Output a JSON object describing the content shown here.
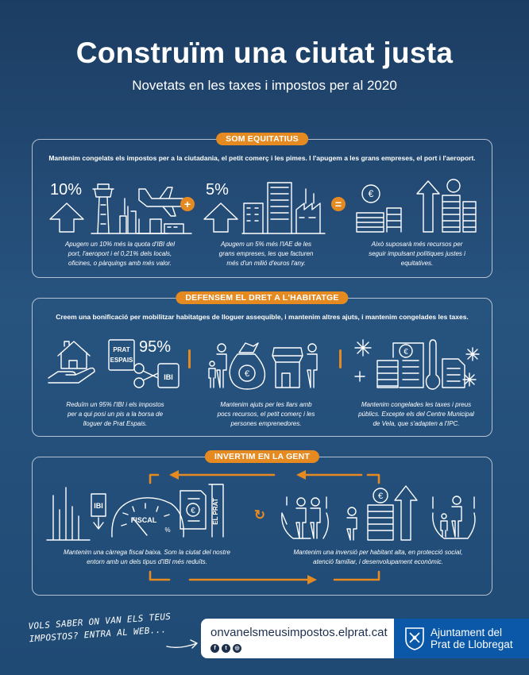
{
  "header": {
    "title": "Construïm una ciutat justa",
    "subtitle": "Novetats en les taxes i impostos per al 2020"
  },
  "colors": {
    "background": "#1f4a74",
    "accent": "#e58a21",
    "logo_blue": "#0a58a7",
    "url_text": "#1d2f4d"
  },
  "section1": {
    "badge": "SOM EQUITATIUS",
    "intro": "Mantenim congelats els impostos per a la ciutadania, el petit comerç i les pimes. I l'apugem a les grans empreses, el port i l'aeroport.",
    "pct_a": "10%",
    "pct_b": "5%",
    "plus": "+",
    "equals": "=",
    "caption_a": [
      "Apugem un 10% més la quota d'IBI del",
      "port, l'aeroport i el 0,21% dels locals,",
      "oficines, o pàrquings amb més valor."
    ],
    "caption_b": [
      "Apugem un 5% més l'IAE de les",
      "grans empreses, les que facturen",
      "més d'un milió d'euros l'any."
    ],
    "caption_c": [
      "Això suposarà més recursos per",
      "seguir impulsant polítiques justes i",
      "equitatives."
    ],
    "icons": [
      "arrow-up-icon",
      "airport-tower-icon",
      "airplane-icon",
      "factory-icon",
      "buildings-icon",
      "coin-stacks-icon",
      "euro-coin-icon"
    ]
  },
  "section2": {
    "badge": "DEFENSEM EL DRET A L'HABITATGE",
    "intro": "Creem una bonificació per mobilitzar habitatges de lloguer assequible, i mantenim altres ajuts, i mantenim congelades les taxes.",
    "pct": "95%",
    "sign_lines": [
      "PRAT",
      "ESPAIS"
    ],
    "ibi_label": "IBI",
    "caption_a": [
      "Reduïm un 95% l'IBI i els impostos",
      "per a qui posi un pis a la borsa de",
      "lloguer de Prat Espais."
    ],
    "caption_b": [
      "Mantenim ajuts per les llars amb",
      "pocs recursos, el petit comerç i les",
      "persones emprenedores."
    ],
    "caption_c": [
      "Mantenim congelades les taxes i preus",
      "públics. Excepte els del Centre Municipal",
      "de Vela, que s'adapten a l'IPC."
    ],
    "icons": [
      "house-in-hand-icon",
      "family-icon",
      "money-bag-icon",
      "shop-icon",
      "snowflake-icon",
      "document-icon",
      "thermometer-icon"
    ]
  },
  "section3": {
    "badge": "INVERTIM EN LA GENT",
    "ibi_label": "IBI",
    "gauge_label": "FISCAL",
    "gauge_pct": "%",
    "sign_label": "EL PRAT",
    "caption_a": [
      "Mantenim una càrrega fiscal baixa. Som la ciutat del nostre",
      "entorn amb un dels tipus d'IBI més reduïts."
    ],
    "caption_b": [
      "Mantenim una inversió per habitant alta, en protecció social,",
      "atenció familiar, i desenvolupament econòmic."
    ],
    "icons": [
      "gauge-icon",
      "bar-chart-icon",
      "people-in-hands-icon",
      "cycle-icon",
      "coin-stack-icon"
    ]
  },
  "footer": {
    "handwritten": [
      "VOLS SABER ON VAN ELS TEUS",
      "IMPOSTOS? ENTRA AL WEB..."
    ],
    "url": "onvanelsmeusimpostos.elprat.cat",
    "social_icons": [
      "facebook-icon",
      "twitter-icon",
      "instagram-icon"
    ],
    "social_glyphs": [
      "f",
      "t",
      "◎"
    ],
    "org_lines": [
      "Ajuntament del",
      "Prat de Llobregat"
    ]
  }
}
